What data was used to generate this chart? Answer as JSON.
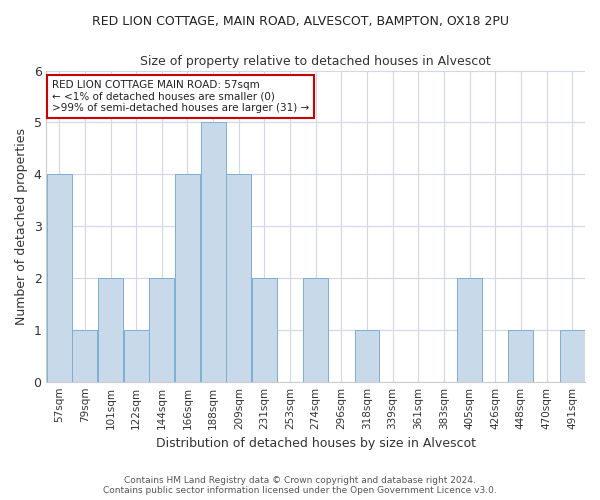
{
  "title": "RED LION COTTAGE, MAIN ROAD, ALVESCOT, BAMPTON, OX18 2PU",
  "subtitle": "Size of property relative to detached houses in Alvescot",
  "xlabel": "Distribution of detached houses by size in Alvescot",
  "ylabel": "Number of detached properties",
  "categories": [
    "57sqm",
    "79sqm",
    "101sqm",
    "122sqm",
    "144sqm",
    "166sqm",
    "188sqm",
    "209sqm",
    "231sqm",
    "253sqm",
    "274sqm",
    "296sqm",
    "318sqm",
    "339sqm",
    "361sqm",
    "383sqm",
    "405sqm",
    "426sqm",
    "448sqm",
    "470sqm",
    "491sqm"
  ],
  "values": [
    4,
    1,
    2,
    1,
    2,
    4,
    5,
    4,
    2,
    0,
    2,
    0,
    1,
    0,
    0,
    0,
    2,
    0,
    1,
    0,
    1
  ],
  "bar_color": "#c8d9ea",
  "bar_edge_color": "#7bafd4",
  "background_color": "#ffffff",
  "annotation_box_text": "RED LION COTTAGE MAIN ROAD: 57sqm\n← <1% of detached houses are smaller (0)\n>99% of semi-detached houses are larger (31) →",
  "annotation_box_color": "#ffffff",
  "annotation_box_edge_color": "#cc0000",
  "ylim": [
    0,
    6
  ],
  "yticks": [
    0,
    1,
    2,
    3,
    4,
    5,
    6
  ],
  "footer_line1": "Contains HM Land Registry data © Crown copyright and database right 2024.",
  "footer_line2": "Contains public sector information licensed under the Open Government Licence v3.0."
}
